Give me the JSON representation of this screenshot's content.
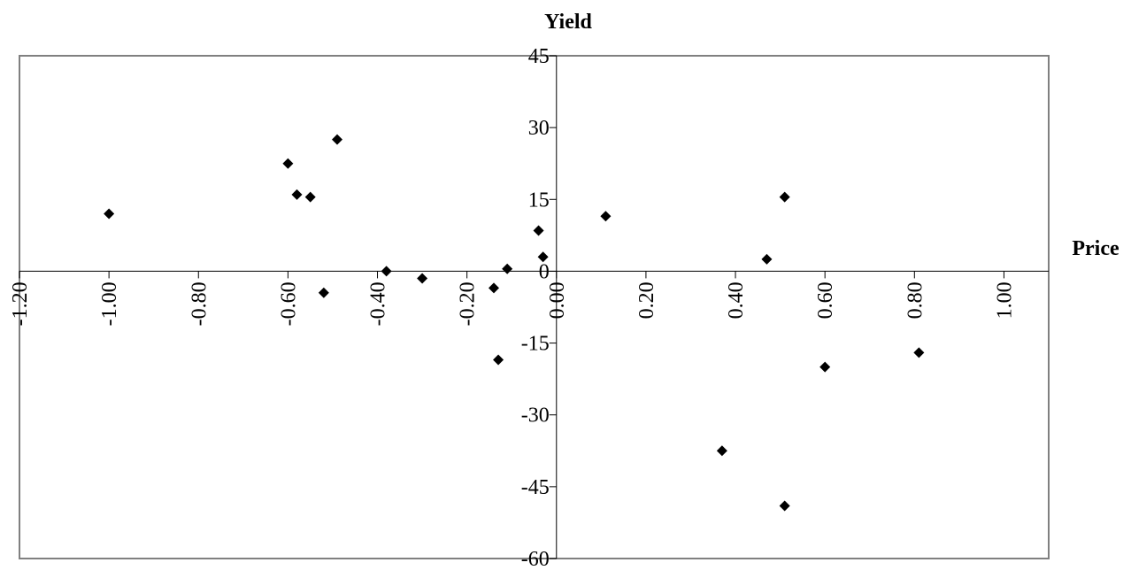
{
  "chart_data": {
    "type": "scatter",
    "title": "",
    "xlabel": "Price",
    "ylabel": "Yield",
    "xlim": [
      -1.2,
      1.1
    ],
    "ylim": [
      -60,
      45
    ],
    "xticks": [
      -1.2,
      -1.0,
      -0.8,
      -0.6,
      -0.4,
      -0.2,
      0.0,
      0.2,
      0.4,
      0.6,
      0.8,
      1.0
    ],
    "xtick_labels": [
      "-1.20",
      "-1.00",
      "-0.80",
      "-0.60",
      "-0.40",
      "-0.20",
      "0.00",
      "0.20",
      "0.40",
      "0.60",
      "0.80",
      "1.00"
    ],
    "yticks": [
      45,
      30,
      15,
      0,
      -15,
      -30,
      -45,
      -60
    ],
    "ytick_labels": [
      "45",
      "30",
      "15",
      "0",
      "-15",
      "-30",
      "-45",
      "-60"
    ],
    "grid": false,
    "legend": "none",
    "marker": "diamond",
    "colors": {
      "marker": "#000000",
      "frame": "#808080",
      "axis": "#000000"
    },
    "series": [
      {
        "x": [
          -1.0,
          -0.6,
          -0.58,
          -0.55,
          -0.52,
          -0.49,
          -0.38,
          -0.3,
          -0.14,
          -0.13,
          -0.11,
          -0.04,
          -0.03,
          0.11,
          0.37,
          0.47,
          0.51,
          0.51,
          0.6,
          0.81
        ],
        "y": [
          12,
          22.5,
          16,
          15.5,
          -4.5,
          27.5,
          0,
          -1.5,
          -3.5,
          -18.5,
          0.5,
          8.5,
          3,
          11.5,
          -37.5,
          2.5,
          15.5,
          -49,
          -20,
          -17
        ]
      }
    ]
  }
}
